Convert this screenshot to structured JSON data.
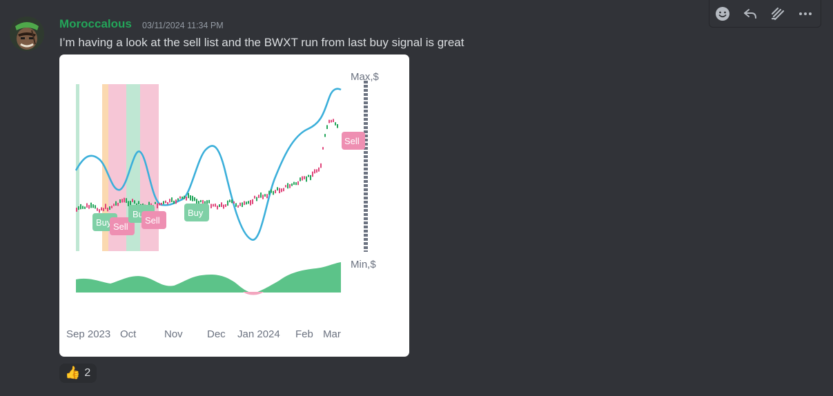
{
  "message": {
    "username": "Moroccalous",
    "timestamp": "03/11/2024 11:34 PM",
    "text": "I’m having a look at the sell list and the BWXT run from last buy signal is great",
    "username_color": "#23a559"
  },
  "toolbar": {
    "icons": [
      "add-reaction-icon",
      "reply-icon",
      "create-thread-icon",
      "more-icon"
    ]
  },
  "attachment": {
    "chart_data": {
      "type": "line",
      "x_ticks": [
        "Sep 2023",
        "Oct",
        "Nov",
        "Dec",
        "Jan 2024",
        "Feb",
        "Mar"
      ],
      "y_axis_top_label": "Max,$",
      "y_axis_bottom_label": "Min,$",
      "series": [
        {
          "name": "",
          "color": "#3bafda"
        },
        {
          "name": "",
          "color": "#e8628a"
        }
      ],
      "signals": [
        {
          "label": "Buy",
          "x": "Sep 2023",
          "color": "#7fd0a6"
        },
        {
          "label": "Sell",
          "x": "Sep 2023",
          "color": "#ee8fb2"
        },
        {
          "label": "Buy",
          "x": "Oct",
          "color": "#7fd0a6"
        },
        {
          "label": "Sell",
          "x": "Oct",
          "color": "#ee8fb2"
        },
        {
          "label": "Buy",
          "x": "Oct",
          "color": "#7fd0a6"
        },
        {
          "label": "Sell",
          "x": "Mar",
          "color": "#ee8fb2"
        }
      ],
      "grid": false
    }
  },
  "reaction": {
    "emoji": "👍",
    "count": "2"
  }
}
